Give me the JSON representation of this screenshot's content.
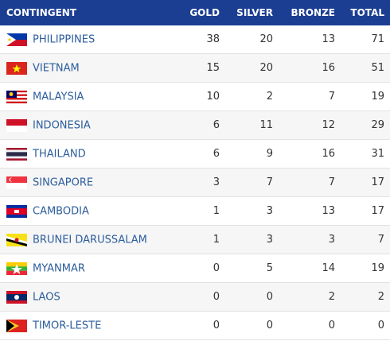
{
  "table": {
    "headers": [
      "CONTINGENT",
      "GOLD",
      "SILVER",
      "BRONZE",
      "TOTAL"
    ],
    "rows": [
      [
        "PHILIPPINES",
        38,
        20,
        13,
        71
      ],
      [
        "VIETNAM",
        15,
        20,
        16,
        51
      ],
      [
        "MALAYSIA",
        10,
        2,
        7,
        19
      ],
      [
        "INDONESIA",
        6,
        11,
        12,
        29
      ],
      [
        "THAILAND",
        6,
        9,
        16,
        31
      ],
      [
        "SINGAPORE",
        3,
        7,
        7,
        17
      ],
      [
        "CAMBODIA",
        1,
        3,
        13,
        17
      ],
      [
        "BRUNEI DARUSSALAM",
        1,
        3,
        3,
        7
      ],
      [
        "MYANMAR",
        0,
        5,
        14,
        19
      ],
      [
        "LAOS",
        0,
        0,
        2,
        2
      ],
      [
        "TIMOR-LESTE",
        0,
        0,
        0,
        0
      ]
    ]
  }
}
